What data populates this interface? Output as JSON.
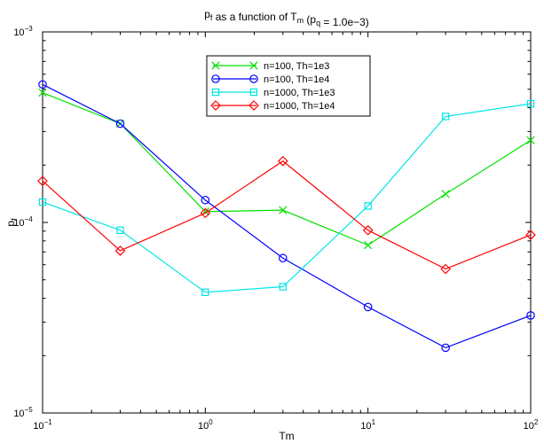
{
  "chart_data": {
    "type": "line",
    "title": {
      "parts": [
        {
          "text": "p",
          "sub": "f"
        },
        {
          "text": " as a function of T",
          "sub": "m"
        },
        {
          "text": " (p",
          "sub": "q"
        },
        {
          "text": " = 1.0e−3)"
        }
      ]
    },
    "xlabel": "Tm",
    "ylabel": {
      "text": "p",
      "sub": "f"
    },
    "x_scale": "log",
    "y_scale": "log",
    "xlim": [
      0.1,
      100
    ],
    "ylim": [
      1e-05,
      0.001
    ],
    "x_ticks": [
      {
        "value": 0.1,
        "base": "10",
        "exp": "−1"
      },
      {
        "value": 1,
        "base": "10",
        "exp": "0"
      },
      {
        "value": 10,
        "base": "10",
        "exp": "1"
      },
      {
        "value": 100,
        "base": "10",
        "exp": "2"
      }
    ],
    "y_ticks": [
      {
        "value": 1e-05,
        "base": "10",
        "exp": "−5"
      },
      {
        "value": 0.0001,
        "base": "10",
        "exp": "−4"
      },
      {
        "value": 0.001,
        "base": "10",
        "exp": "−3"
      }
    ],
    "grid": false,
    "legend_position": "top-center",
    "x": [
      0.1,
      0.3,
      1,
      3,
      10,
      30,
      100
    ],
    "series": [
      {
        "name": "n=100, Th=1e3",
        "color": "#00e000",
        "marker": "x",
        "values": [
          0.00048,
          0.00033,
          0.000114,
          0.000116,
          7.6e-05,
          0.000141,
          0.00027
        ]
      },
      {
        "name": "n=100, Th=1e4",
        "color": "#0000ff",
        "marker": "circle",
        "values": [
          0.00053,
          0.00033,
          0.000131,
          6.5e-05,
          3.6e-05,
          2.2e-05,
          3.25e-05
        ]
      },
      {
        "name": "n=1000, Th=1e3",
        "color": "#00e5e5",
        "marker": "square",
        "values": [
          0.000128,
          9.1e-05,
          4.3e-05,
          4.6e-05,
          0.000122,
          0.00036,
          0.00042
        ]
      },
      {
        "name": "n=1000, Th=1e4",
        "color": "#ff0000",
        "marker": "diamond",
        "values": [
          0.000165,
          7.1e-05,
          0.000112,
          0.00021,
          9.1e-05,
          5.7e-05,
          8.6e-05
        ]
      }
    ]
  }
}
